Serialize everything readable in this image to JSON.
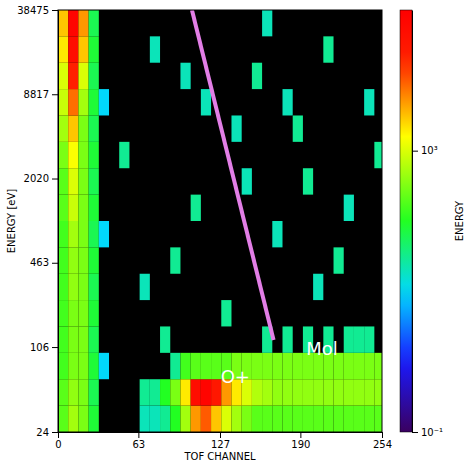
{
  "chart_data": {
    "type": "heatmap",
    "log": "y",
    "xlabel": "TOF CHANNEL",
    "ylabel": "ENERGY [eV]",
    "xlim": [
      0,
      254
    ],
    "xticks": [
      0,
      63,
      127,
      190,
      254
    ],
    "ylim": [
      24,
      38475
    ],
    "yticks": [
      24,
      106,
      463,
      2020,
      8817,
      38475
    ],
    "x_bins": [
      0,
      8,
      16,
      24,
      32,
      40,
      48,
      56,
      64,
      72,
      80,
      88,
      96,
      104,
      112,
      120,
      128,
      136,
      144,
      152,
      160,
      168,
      176,
      184,
      192,
      200,
      208,
      216,
      224,
      232,
      240,
      248,
      254
    ],
    "y_bins": [
      24,
      38.1,
      60.4,
      95.8,
      152,
      241,
      382,
      606,
      961,
      1524,
      2418,
      3835,
      6083,
      9648,
      15303,
      24273,
      38475
    ],
    "cells": [
      [
        0,
        0,
        200
      ],
      [
        0,
        1,
        200
      ],
      [
        0,
        2,
        150
      ],
      [
        0,
        3,
        150
      ],
      [
        0,
        4,
        150
      ],
      [
        0,
        5,
        150
      ],
      [
        0,
        6,
        150
      ],
      [
        0,
        7,
        150
      ],
      [
        0,
        8,
        200
      ],
      [
        0,
        9,
        200
      ],
      [
        0,
        10,
        300
      ],
      [
        0,
        11,
        500
      ],
      [
        0,
        12,
        800
      ],
      [
        0,
        13,
        1000
      ],
      [
        0,
        14,
        2000
      ],
      [
        0,
        15,
        3000
      ],
      [
        1,
        0,
        500
      ],
      [
        1,
        1,
        400
      ],
      [
        1,
        2,
        300
      ],
      [
        1,
        3,
        300
      ],
      [
        1,
        4,
        300
      ],
      [
        1,
        5,
        400
      ],
      [
        1,
        6,
        400
      ],
      [
        1,
        7,
        500
      ],
      [
        1,
        8,
        800
      ],
      [
        1,
        9,
        1000
      ],
      [
        1,
        10,
        1500
      ],
      [
        1,
        11,
        3000
      ],
      [
        1,
        12,
        8000
      ],
      [
        1,
        13,
        20000
      ],
      [
        1,
        14,
        50000
      ],
      [
        1,
        15,
        80000
      ],
      [
        2,
        0,
        300
      ],
      [
        2,
        1,
        300
      ],
      [
        2,
        2,
        300
      ],
      [
        2,
        3,
        300
      ],
      [
        2,
        4,
        300
      ],
      [
        2,
        5,
        300
      ],
      [
        2,
        6,
        300
      ],
      [
        2,
        7,
        300
      ],
      [
        2,
        8,
        300
      ],
      [
        2,
        9,
        300
      ],
      [
        2,
        10,
        300
      ],
      [
        2,
        11,
        300
      ],
      [
        2,
        12,
        500
      ],
      [
        2,
        13,
        1000
      ],
      [
        2,
        14,
        3000
      ],
      [
        2,
        15,
        5000
      ],
      [
        3,
        0,
        80
      ],
      [
        3,
        1,
        60
      ],
      [
        3,
        2,
        80
      ],
      [
        3,
        3,
        60
      ],
      [
        3,
        4,
        80
      ],
      [
        3,
        5,
        60
      ],
      [
        3,
        6,
        80
      ],
      [
        3,
        7,
        60
      ],
      [
        3,
        8,
        80
      ],
      [
        3,
        9,
        60
      ],
      [
        3,
        10,
        80
      ],
      [
        3,
        11,
        60
      ],
      [
        3,
        12,
        80
      ],
      [
        3,
        13,
        60
      ],
      [
        3,
        14,
        80
      ],
      [
        3,
        15,
        60
      ],
      [
        4,
        2,
        10
      ],
      [
        4,
        7,
        10
      ],
      [
        4,
        12,
        10
      ],
      [
        8,
        0,
        20
      ],
      [
        9,
        0,
        20
      ],
      [
        10,
        0,
        30
      ],
      [
        11,
        0,
        100
      ],
      [
        12,
        0,
        500
      ],
      [
        13,
        0,
        5000
      ],
      [
        14,
        0,
        10000
      ],
      [
        15,
        0,
        3000
      ],
      [
        16,
        0,
        1000
      ],
      [
        17,
        0,
        500
      ],
      [
        18,
        0,
        300
      ],
      [
        19,
        0,
        200
      ],
      [
        20,
        0,
        200
      ],
      [
        21,
        0,
        200
      ],
      [
        22,
        0,
        200
      ],
      [
        23,
        0,
        200
      ],
      [
        24,
        0,
        200
      ],
      [
        25,
        0,
        200
      ],
      [
        26,
        0,
        200
      ],
      [
        27,
        0,
        200
      ],
      [
        28,
        0,
        200
      ],
      [
        29,
        0,
        200
      ],
      [
        30,
        0,
        200
      ],
      [
        31,
        0,
        200
      ],
      [
        8,
        1,
        30
      ],
      [
        9,
        1,
        30
      ],
      [
        10,
        1,
        100
      ],
      [
        11,
        1,
        300
      ],
      [
        12,
        1,
        2000
      ],
      [
        13,
        1,
        50000
      ],
      [
        14,
        1,
        80000
      ],
      [
        15,
        1,
        30000
      ],
      [
        16,
        1,
        5000
      ],
      [
        17,
        1,
        2000
      ],
      [
        18,
        1,
        1000
      ],
      [
        19,
        1,
        600
      ],
      [
        20,
        1,
        500
      ],
      [
        21,
        1,
        400
      ],
      [
        22,
        1,
        400
      ],
      [
        23,
        1,
        400
      ],
      [
        24,
        1,
        400
      ],
      [
        25,
        1,
        400
      ],
      [
        26,
        1,
        400
      ],
      [
        27,
        1,
        400
      ],
      [
        28,
        1,
        400
      ],
      [
        29,
        1,
        400
      ],
      [
        30,
        1,
        400
      ],
      [
        31,
        1,
        400
      ],
      [
        11,
        2,
        30
      ],
      [
        12,
        2,
        150
      ],
      [
        13,
        2,
        200
      ],
      [
        14,
        2,
        200
      ],
      [
        15,
        2,
        200
      ],
      [
        16,
        2,
        200
      ],
      [
        17,
        2,
        300
      ],
      [
        18,
        2,
        300
      ],
      [
        19,
        2,
        300
      ],
      [
        20,
        2,
        300
      ],
      [
        21,
        2,
        300
      ],
      [
        22,
        2,
        300
      ],
      [
        23,
        2,
        300
      ],
      [
        24,
        2,
        300
      ],
      [
        25,
        2,
        300
      ],
      [
        26,
        2,
        300
      ],
      [
        27,
        2,
        300
      ],
      [
        28,
        2,
        300
      ],
      [
        29,
        2,
        300
      ],
      [
        30,
        2,
        300
      ],
      [
        31,
        2,
        300
      ],
      [
        20,
        3,
        30
      ],
      [
        22,
        3,
        30
      ],
      [
        24,
        3,
        30
      ],
      [
        26,
        3,
        30
      ],
      [
        28,
        3,
        30
      ],
      [
        30,
        3,
        30
      ],
      [
        6,
        10,
        30
      ],
      [
        9,
        14,
        20
      ],
      [
        11,
        6,
        30
      ],
      [
        14,
        12,
        20
      ],
      [
        16,
        4,
        30
      ],
      [
        18,
        9,
        20
      ],
      [
        19,
        13,
        30
      ],
      [
        21,
        7,
        20
      ],
      [
        23,
        11,
        30
      ],
      [
        25,
        5,
        20
      ],
      [
        26,
        14,
        30
      ],
      [
        28,
        8,
        20
      ],
      [
        29,
        3,
        30
      ],
      [
        30,
        12,
        20
      ],
      [
        31,
        10,
        30
      ],
      [
        8,
        5,
        20
      ],
      [
        13,
        8,
        30
      ],
      [
        20,
        15,
        20
      ],
      [
        24,
        9,
        30
      ],
      [
        17,
        11,
        20
      ],
      [
        27,
        6,
        30
      ],
      [
        12,
        13,
        20
      ],
      [
        10,
        3,
        30
      ],
      [
        22,
        12,
        20
      ]
    ],
    "colorbar": {
      "title": "ENERGY",
      "lim": [
        0.1,
        100000
      ],
      "ticks": [
        {
          "value": 0.1,
          "label": "10⁻¹"
        },
        {
          "value": 1000,
          "label": "10³"
        }
      ]
    },
    "annotation_line": {
      "x": [
        105,
        169
      ],
      "y": [
        38475,
        120
      ],
      "color": "#e27ee6"
    },
    "annotations": [
      {
        "text": "O+",
        "x": 139,
        "y": 62
      },
      {
        "text": "Mol",
        "x": 207,
        "y": 100
      }
    ]
  }
}
